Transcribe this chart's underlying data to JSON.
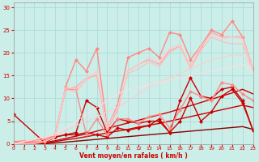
{
  "bg_color": "#cceee8",
  "grid_color": "#aadddd",
  "xlabel": "Vent moyen/en rafales ( km/h )",
  "xlabel_color": "#cc0000",
  "tick_color": "#cc0000",
  "x_ticks": [
    0,
    1,
    2,
    3,
    4,
    5,
    6,
    7,
    8,
    9,
    10,
    11,
    12,
    13,
    14,
    15,
    16,
    17,
    18,
    19,
    20,
    21,
    22,
    23
  ],
  "ylim": [
    0,
    31
  ],
  "xlim": [
    0,
    23
  ],
  "y_ticks": [
    0,
    5,
    10,
    15,
    20,
    25,
    30
  ],
  "lines": [
    {
      "x": [
        0,
        1,
        2,
        3,
        4,
        5,
        6,
        7,
        8,
        9,
        10,
        11,
        12,
        13,
        14,
        15,
        16,
        17,
        18,
        19,
        20,
        21,
        22,
        23
      ],
      "y": [
        0.0,
        0.0,
        0.0,
        0.0,
        0.2,
        0.4,
        0.6,
        0.8,
        1.0,
        1.2,
        1.4,
        1.6,
        1.8,
        2.0,
        2.2,
        2.4,
        2.6,
        2.8,
        3.0,
        3.2,
        3.4,
        3.6,
        3.8,
        3.2
      ],
      "color": "#880000",
      "lw": 1.0,
      "marker": null
    },
    {
      "x": [
        0,
        1,
        2,
        3,
        4,
        5,
        6,
        7,
        8,
        9,
        10,
        11,
        12,
        13,
        14,
        15,
        16,
        17,
        18,
        19,
        20,
        21,
        22,
        23
      ],
      "y": [
        0.0,
        0.0,
        0.0,
        0.2,
        0.5,
        0.9,
        1.2,
        1.6,
        2.0,
        2.4,
        2.8,
        3.2,
        3.7,
        4.1,
        4.5,
        5.0,
        5.5,
        6.0,
        6.5,
        7.0,
        7.5,
        8.0,
        8.5,
        8.0
      ],
      "color": "#cc0000",
      "lw": 1.0,
      "marker": null
    },
    {
      "x": [
        0,
        1,
        2,
        3,
        4,
        5,
        6,
        7,
        8,
        9,
        10,
        11,
        12,
        13,
        14,
        15,
        16,
        17,
        18,
        19,
        20,
        21,
        22,
        23
      ],
      "y": [
        0.0,
        0.0,
        0.0,
        0.3,
        0.7,
        1.2,
        1.7,
        2.2,
        2.8,
        3.4,
        4.0,
        4.6,
        5.2,
        5.8,
        6.4,
        7.0,
        7.7,
        8.4,
        9.1,
        9.8,
        10.5,
        11.2,
        12.0,
        11.0
      ],
      "color": "#cc0000",
      "lw": 1.0,
      "marker": null
    },
    {
      "x": [
        0,
        3,
        4,
        5,
        6,
        7,
        8,
        9,
        10,
        11,
        12,
        13,
        14,
        15,
        16,
        17,
        18,
        19,
        20,
        21,
        22,
        23
      ],
      "y": [
        0.5,
        0.3,
        1.5,
        2.0,
        2.0,
        2.5,
        2.0,
        1.5,
        3.5,
        3.0,
        3.5,
        4.0,
        5.5,
        2.5,
        5.0,
        10.0,
        5.0,
        7.0,
        10.5,
        12.0,
        9.0,
        3.0
      ],
      "color": "#cc0000",
      "lw": 1.0,
      "marker": "D",
      "ms": 2.0
    },
    {
      "x": [
        0,
        3,
        4,
        5,
        6,
        7,
        8,
        9,
        10,
        11,
        12,
        13,
        14,
        15,
        16,
        17,
        18,
        19,
        20,
        21,
        22,
        23
      ],
      "y": [
        6.5,
        0.3,
        1.5,
        2.0,
        2.5,
        9.5,
        8.0,
        2.5,
        5.5,
        5.0,
        4.5,
        5.0,
        5.0,
        2.5,
        9.5,
        14.5,
        10.5,
        10.0,
        12.0,
        12.5,
        9.5,
        3.0
      ],
      "color": "#cc0000",
      "lw": 1.0,
      "marker": "D",
      "ms": 2.0
    },
    {
      "x": [
        0,
        3,
        4,
        5,
        6,
        7,
        8,
        9,
        10,
        11,
        12,
        13,
        14,
        15,
        16,
        17,
        18,
        19,
        20,
        21,
        22,
        23
      ],
      "y": [
        0.5,
        1.0,
        2.0,
        12.0,
        12.0,
        2.0,
        5.5,
        2.0,
        5.5,
        5.5,
        4.5,
        6.0,
        6.5,
        3.5,
        7.5,
        11.5,
        10.5,
        9.5,
        13.5,
        13.0,
        11.0,
        9.5
      ],
      "color": "#ff8888",
      "lw": 1.0,
      "marker": "D",
      "ms": 2.0
    },
    {
      "x": [
        0,
        3,
        4,
        5,
        6,
        7,
        8,
        9,
        10,
        11,
        12,
        13,
        14,
        15,
        16,
        17,
        18,
        19,
        20,
        21,
        22,
        23
      ],
      "y": [
        0.5,
        0.5,
        2.0,
        12.5,
        18.5,
        16.0,
        21.0,
        3.5,
        8.5,
        19.0,
        20.0,
        21.0,
        19.0,
        24.5,
        24.0,
        18.5,
        21.5,
        25.0,
        24.0,
        27.0,
        23.5,
        16.5
      ],
      "color": "#ff8888",
      "lw": 1.0,
      "marker": "D",
      "ms": 2.0
    },
    {
      "x": [
        0,
        3,
        4,
        5,
        6,
        7,
        8,
        9,
        10,
        11,
        12,
        13,
        14,
        15,
        16,
        17,
        18,
        19,
        20,
        21,
        22,
        23
      ],
      "y": [
        0.0,
        0.5,
        1.5,
        12.0,
        12.5,
        14.5,
        15.0,
        3.0,
        7.5,
        16.0,
        17.5,
        18.5,
        17.5,
        20.5,
        21.5,
        17.0,
        21.0,
        24.5,
        23.5,
        23.5,
        23.5,
        16.5
      ],
      "color": "#ffaaaa",
      "lw": 1.0,
      "marker": null
    },
    {
      "x": [
        0,
        1,
        2,
        3,
        4,
        5,
        6,
        7,
        8,
        9,
        10,
        11,
        12,
        13,
        14,
        15,
        16,
        17,
        18,
        19,
        20,
        21,
        22,
        23
      ],
      "y": [
        0.0,
        0.0,
        0.0,
        0.5,
        1.5,
        12.0,
        11.5,
        14.0,
        15.5,
        3.0,
        8.0,
        15.5,
        16.5,
        18.0,
        17.0,
        20.0,
        21.5,
        16.5,
        20.5,
        23.5,
        22.5,
        22.0,
        22.0,
        16.0
      ],
      "color": "#ffbbbb",
      "lw": 0.8,
      "marker": null
    },
    {
      "x": [
        0,
        1,
        2,
        3,
        4,
        5,
        6,
        7,
        8,
        9,
        10,
        11,
        12,
        13,
        14,
        15,
        16,
        17,
        18,
        19,
        20,
        21,
        22,
        23
      ],
      "y": [
        0.0,
        0.5,
        1.0,
        1.5,
        2.0,
        12.5,
        12.0,
        14.5,
        16.0,
        3.5,
        8.0,
        16.0,
        17.5,
        19.0,
        18.0,
        21.0,
        22.0,
        17.0,
        21.5,
        24.0,
        23.0,
        23.5,
        23.0,
        16.5
      ],
      "color": "#ffcccc",
      "lw": 0.8,
      "marker": null
    },
    {
      "x": [
        0,
        1,
        2,
        3,
        4,
        5,
        6,
        7,
        8,
        9,
        10,
        11,
        12,
        13,
        14,
        15,
        16,
        17,
        18,
        19,
        20,
        21,
        22,
        23
      ],
      "y": [
        0.0,
        0.5,
        1.0,
        1.5,
        2.0,
        3.0,
        4.0,
        5.0,
        6.0,
        7.0,
        8.0,
        9.5,
        11.0,
        12.5,
        13.5,
        14.5,
        15.5,
        16.5,
        17.5,
        18.5,
        19.0,
        19.5,
        19.5,
        16.5
      ],
      "color": "#ffcccc",
      "lw": 0.8,
      "marker": null
    },
    {
      "x": [
        0,
        1,
        2,
        3,
        4,
        5,
        6,
        7,
        8,
        9,
        10,
        11,
        12,
        13,
        14,
        15,
        16,
        17,
        18,
        19,
        20,
        21,
        22,
        23
      ],
      "y": [
        0.0,
        0.5,
        1.0,
        1.5,
        2.0,
        3.5,
        5.0,
        6.5,
        8.0,
        9.5,
        11.0,
        12.0,
        12.5,
        13.0,
        13.5,
        14.0,
        14.5,
        15.0,
        15.5,
        16.0,
        16.5,
        17.0,
        17.5,
        16.0
      ],
      "color": "#ffdddd",
      "lw": 0.8,
      "marker": null
    }
  ]
}
